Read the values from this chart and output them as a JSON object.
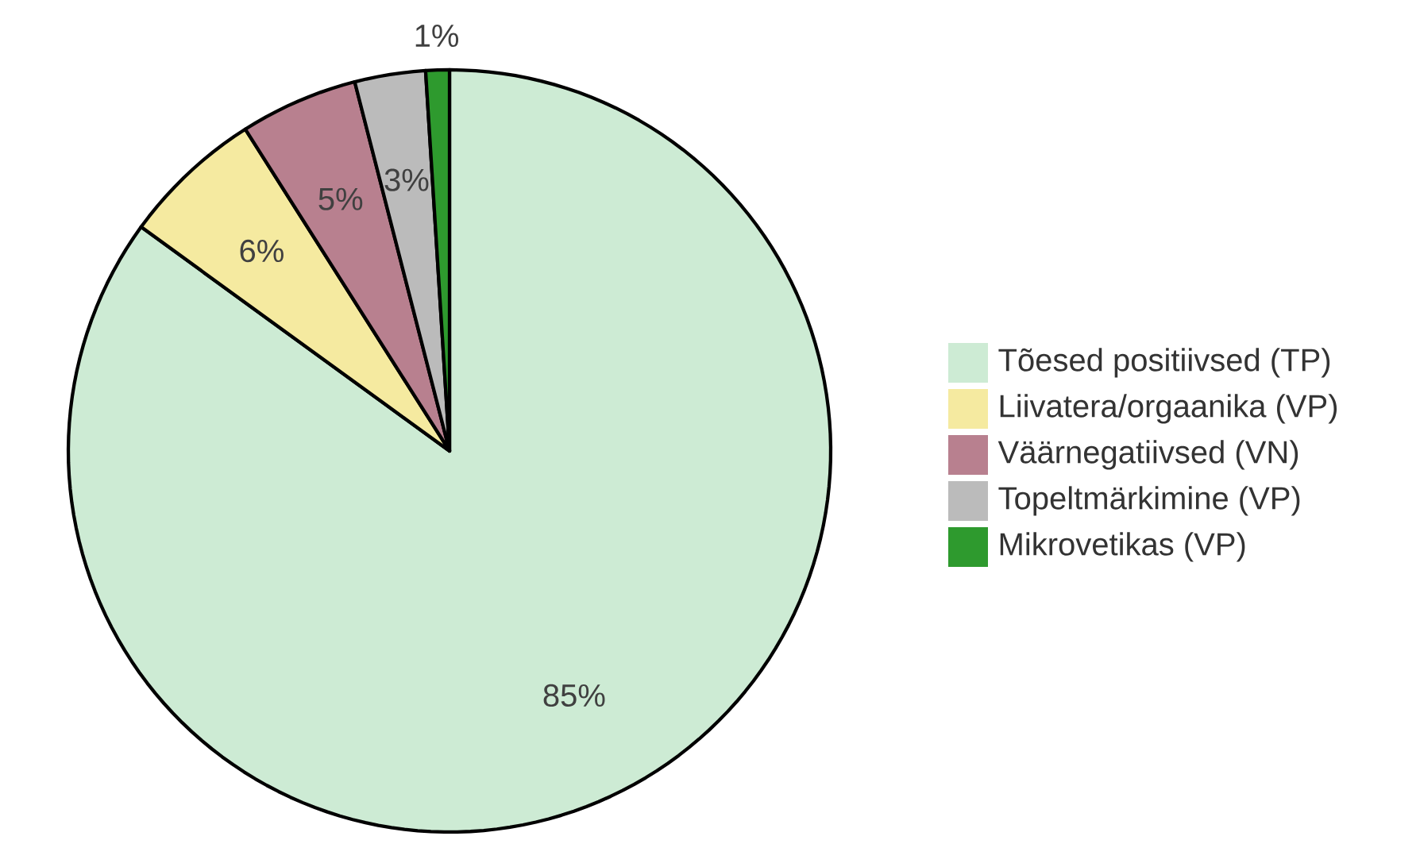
{
  "chart_data": {
    "type": "pie",
    "categories": [
      "Tõesed positiivsed (TP)",
      "Liivatera/orgaanika (VP)",
      "Väärnegatiivsed (VN)",
      "Topeltmärkimine (VP)",
      "Mikrovetikas (VP)"
    ],
    "values": [
      85,
      6,
      5,
      3,
      1
    ],
    "value_labels": [
      "85%",
      "6%",
      "5%",
      "3%",
      "1%"
    ],
    "colors": [
      "#cdebd4",
      "#f5eaa0",
      "#b8808f",
      "#bbbbbb",
      "#2e9a2e"
    ],
    "legend": "right"
  }
}
